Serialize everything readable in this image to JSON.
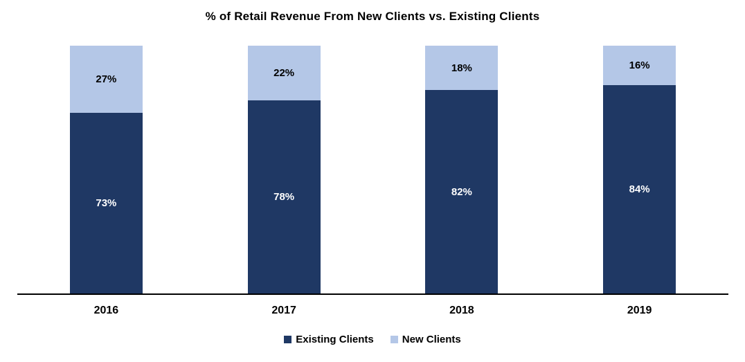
{
  "chart_data": {
    "type": "bar",
    "stacked": true,
    "title": "% of Retail Revenue From New Clients vs. Existing Clients",
    "categories": [
      "2016",
      "2017",
      "2018",
      "2019"
    ],
    "series": [
      {
        "name": "Existing Clients",
        "values": [
          73,
          78,
          82,
          84
        ],
        "color": "#1F3864",
        "label_color": "#FFFFFF"
      },
      {
        "name": "New Clients",
        "values": [
          27,
          22,
          18,
          16
        ],
        "color": "#B4C7E7",
        "label_color": "#000000"
      }
    ],
    "value_suffix": "%",
    "ylim": [
      0,
      100
    ],
    "xlabel": "",
    "ylabel": "",
    "grid": false,
    "legend_position": "bottom"
  }
}
